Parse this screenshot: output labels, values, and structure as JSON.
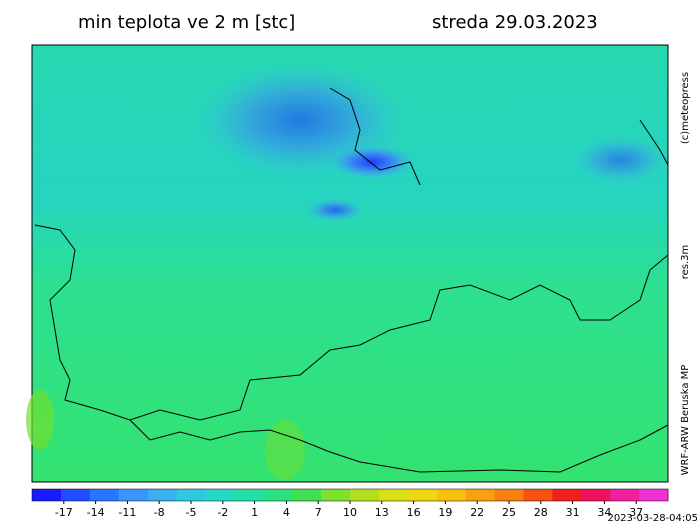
{
  "header": {
    "title": "min teplota ve 2 m [stc]",
    "date": "streda 29.03.2023"
  },
  "side": {
    "credit": "(c)meteopress",
    "resolution": "res.3m",
    "model": "WRF-ARW Beruska MP"
  },
  "timestamp": "2023-03-28-04:05",
  "colorbar": {
    "lim": [
      -20,
      40
    ],
    "ticks": [
      -17,
      -14,
      -11,
      -8,
      -5,
      -2,
      1,
      4,
      7,
      10,
      13,
      16,
      19,
      22,
      25,
      28,
      31,
      34,
      37
    ],
    "colors": [
      "#1a1aff",
      "#1f4dff",
      "#2a75ff",
      "#3a95ff",
      "#3ab0f0",
      "#30c8e0",
      "#25d9c8",
      "#22e0a8",
      "#2ae080",
      "#40e050",
      "#80e030",
      "#b0e020",
      "#d8e018",
      "#f0d810",
      "#f8c010",
      "#f8a010",
      "#f88010",
      "#f85010",
      "#f02020",
      "#f01060",
      "#f020a0",
      "#f030d0"
    ]
  }
}
